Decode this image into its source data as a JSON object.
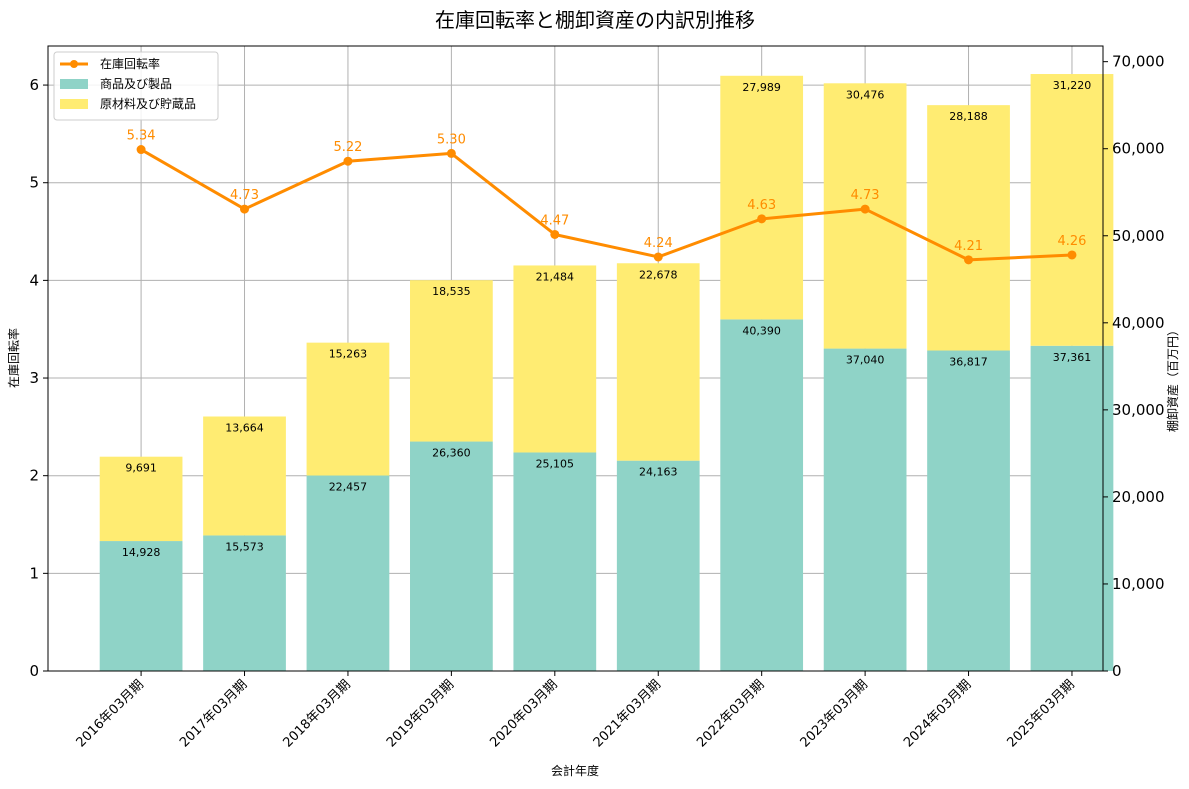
{
  "chart_data": {
    "type": "bar",
    "title": "在庫回転率と棚卸資産の内訳別推移",
    "xlabel": "会計年度",
    "ylabel_left": "在庫回転率",
    "ylabel_right": "棚卸資産（百万円）",
    "categories": [
      "2016年03月期",
      "2017年03月期",
      "2018年03月期",
      "2019年03月期",
      "2020年03月期",
      "2021年03月期",
      "2022年03月期",
      "2023年03月期",
      "2024年03月期",
      "2025年03月期"
    ],
    "series": [
      {
        "name": "商品及び製品",
        "kind": "bar",
        "axis": "right",
        "color": "#8fd3c7",
        "values": [
          14928,
          15573,
          22457,
          26360,
          25105,
          24163,
          40390,
          37040,
          36817,
          37361
        ],
        "labels": [
          "14,928",
          "15,573",
          "22,457",
          "26,360",
          "25,105",
          "24,163",
          "40,390",
          "37,040",
          "36,817",
          "37,361"
        ]
      },
      {
        "name": "原材料及び貯蔵品",
        "kind": "bar",
        "axis": "right",
        "color": "#ffec72",
        "values": [
          9691,
          13664,
          15263,
          18535,
          21484,
          22678,
          27989,
          30476,
          28188,
          31220
        ],
        "labels": [
          "9,691",
          "13,664",
          "15,263",
          "18,535",
          "21,484",
          "22,678",
          "27,989",
          "30,476",
          "28,188",
          "31,220"
        ]
      },
      {
        "name": "在庫回転率",
        "kind": "line",
        "axis": "left",
        "color": "#ff8c00",
        "values": [
          5.34,
          4.73,
          5.22,
          5.3,
          4.47,
          4.24,
          4.63,
          4.73,
          4.21,
          4.26
        ],
        "labels": [
          "5.34",
          "4.73",
          "5.22",
          "5.30",
          "4.47",
          "4.24",
          "4.63",
          "4.73",
          "4.21",
          "4.26"
        ]
      }
    ],
    "ylim_left": [
      0,
      6.4
    ],
    "yticks_left": [
      0,
      1,
      2,
      3,
      4,
      5,
      6
    ],
    "yticklabels_left": [
      "0",
      "1",
      "2",
      "3",
      "4",
      "5",
      "6"
    ],
    "ylim_right": [
      0,
      71800
    ],
    "yticks_right": [
      0,
      10000,
      20000,
      30000,
      40000,
      50000,
      60000,
      70000
    ],
    "yticklabels_right": [
      "0",
      "10,000",
      "20,000",
      "30,000",
      "40,000",
      "50,000",
      "60,000",
      "70,000"
    ],
    "grid": true,
    "legend": {
      "position": "top-left",
      "items": [
        "在庫回転率",
        "商品及び製品",
        "原材料及び貯蔵品"
      ]
    }
  }
}
